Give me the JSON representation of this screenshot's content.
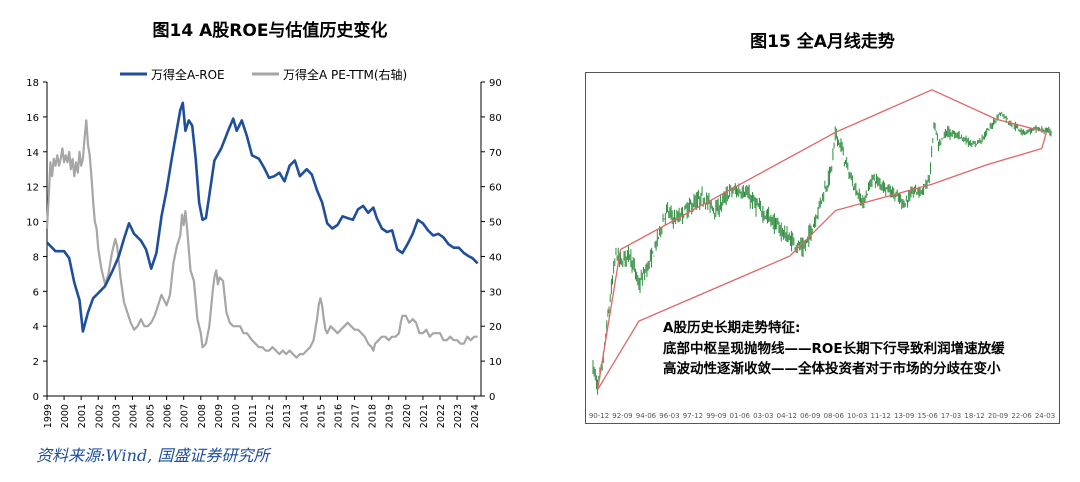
{
  "figure14": {
    "title": "图14 A股ROE与估值历史变化",
    "chart_data": {
      "type": "line",
      "title": "图14 A股ROE与估值历史变化",
      "x_ticks": [
        "1999",
        "2000",
        "2001",
        "2002",
        "2003",
        "2004",
        "2005",
        "2006",
        "2007",
        "2008",
        "2009",
        "2010",
        "2011",
        "2012",
        "2013",
        "2014",
        "2015",
        "2016",
        "2017",
        "2018",
        "2019",
        "2020",
        "2021",
        "2022",
        "2023",
        "2024"
      ],
      "ylim_left": [
        0,
        18
      ],
      "yticks_left": [
        "0",
        "2",
        "4",
        "6",
        "8",
        "10",
        "12",
        "14",
        "16",
        "18"
      ],
      "ylim_right": [
        0,
        90
      ],
      "yticks_right": [
        "0",
        "10",
        "20",
        "30",
        "40",
        "50",
        "60",
        "70",
        "80",
        "90"
      ],
      "legend_position": "top",
      "series": [
        {
          "name": "万得全A-ROE",
          "axis": "left",
          "color": "#1f4e9c",
          "points": [
            [
              1999.0,
              8.8
            ],
            [
              1999.5,
              8.3
            ],
            [
              2000.0,
              8.3
            ],
            [
              2000.3,
              7.9
            ],
            [
              2000.6,
              6.5
            ],
            [
              2000.9,
              5.5
            ],
            [
              2001.1,
              3.7
            ],
            [
              2001.4,
              4.8
            ],
            [
              2001.7,
              5.6
            ],
            [
              2002.0,
              5.9
            ],
            [
              2002.4,
              6.3
            ],
            [
              2002.8,
              7.1
            ],
            [
              2003.2,
              8.0
            ],
            [
              2003.5,
              9.0
            ],
            [
              2003.8,
              9.9
            ],
            [
              2004.1,
              9.3
            ],
            [
              2004.5,
              8.9
            ],
            [
              2004.8,
              8.4
            ],
            [
              2005.1,
              7.3
            ],
            [
              2005.4,
              8.2
            ],
            [
              2005.7,
              10.3
            ],
            [
              2006.0,
              11.8
            ],
            [
              2006.3,
              13.6
            ],
            [
              2006.6,
              15.3
            ],
            [
              2006.8,
              16.4
            ],
            [
              2006.95,
              16.8
            ],
            [
              2007.1,
              15.2
            ],
            [
              2007.3,
              15.8
            ],
            [
              2007.5,
              15.5
            ],
            [
              2007.7,
              13.6
            ],
            [
              2007.9,
              11.1
            ],
            [
              2008.1,
              10.1
            ],
            [
              2008.3,
              10.2
            ],
            [
              2008.5,
              11.5
            ],
            [
              2008.8,
              13.5
            ],
            [
              2009.2,
              14.2
            ],
            [
              2009.6,
              15.2
            ],
            [
              2009.9,
              15.9
            ],
            [
              2010.1,
              15.2
            ],
            [
              2010.4,
              15.8
            ],
            [
              2010.7,
              14.9
            ],
            [
              2011.0,
              13.8
            ],
            [
              2011.4,
              13.6
            ],
            [
              2011.7,
              13.1
            ],
            [
              2012.0,
              12.5
            ],
            [
              2012.3,
              12.6
            ],
            [
              2012.6,
              12.8
            ],
            [
              2012.9,
              12.3
            ],
            [
              2013.2,
              13.2
            ],
            [
              2013.5,
              13.5
            ],
            [
              2013.8,
              12.6
            ],
            [
              2014.2,
              13.0
            ],
            [
              2014.5,
              12.7
            ],
            [
              2014.8,
              11.8
            ],
            [
              2015.1,
              11.1
            ],
            [
              2015.4,
              9.9
            ],
            [
              2015.7,
              9.6
            ],
            [
              2016.0,
              9.8
            ],
            [
              2016.3,
              10.3
            ],
            [
              2016.6,
              10.2
            ],
            [
              2016.9,
              10.1
            ],
            [
              2017.2,
              10.7
            ],
            [
              2017.5,
              10.9
            ],
            [
              2017.8,
              10.5
            ],
            [
              2018.1,
              10.8
            ],
            [
              2018.3,
              10.2
            ],
            [
              2018.6,
              9.6
            ],
            [
              2018.9,
              9.4
            ],
            [
              2019.2,
              9.5
            ],
            [
              2019.5,
              8.4
            ],
            [
              2019.8,
              8.2
            ],
            [
              2020.1,
              8.7
            ],
            [
              2020.4,
              9.3
            ],
            [
              2020.7,
              10.1
            ],
            [
              2021.0,
              9.9
            ],
            [
              2021.3,
              9.5
            ],
            [
              2021.6,
              9.2
            ],
            [
              2021.9,
              9.3
            ],
            [
              2022.2,
              9.1
            ],
            [
              2022.5,
              8.7
            ],
            [
              2022.8,
              8.5
            ],
            [
              2023.1,
              8.5
            ],
            [
              2023.4,
              8.2
            ],
            [
              2023.7,
              8.0
            ],
            [
              2023.9,
              7.9
            ],
            [
              2024.2,
              7.6
            ]
          ]
        },
        {
          "name": "万得全A PE-TTM(右轴)",
          "axis": "right",
          "color": "#a6a6a6",
          "points": [
            [
              1999.0,
              48
            ],
            [
              1999.1,
              57
            ],
            [
              1999.2,
              67
            ],
            [
              1999.3,
              63
            ],
            [
              1999.4,
              68
            ],
            [
              1999.5,
              66
            ],
            [
              1999.6,
              69
            ],
            [
              1999.7,
              66
            ],
            [
              1999.8,
              68
            ],
            [
              1999.9,
              71
            ],
            [
              2000.0,
              67
            ],
            [
              2000.1,
              69
            ],
            [
              2000.2,
              67
            ],
            [
              2000.3,
              70
            ],
            [
              2000.4,
              65
            ],
            [
              2000.5,
              68
            ],
            [
              2000.6,
              63
            ],
            [
              2000.7,
              67
            ],
            [
              2000.8,
              64
            ],
            [
              2000.9,
              70
            ],
            [
              2001.0,
              66
            ],
            [
              2001.1,
              68
            ],
            [
              2001.2,
              74
            ],
            [
              2001.3,
              79
            ],
            [
              2001.4,
              72
            ],
            [
              2001.5,
              69
            ],
            [
              2001.6,
              63
            ],
            [
              2001.7,
              56
            ],
            [
              2001.8,
              50
            ],
            [
              2001.9,
              48
            ],
            [
              2002.0,
              42
            ],
            [
              2002.2,
              36
            ],
            [
              2002.4,
              32
            ],
            [
              2002.6,
              35
            ],
            [
              2002.8,
              41
            ],
            [
              2003.0,
              45
            ],
            [
              2003.1,
              43
            ],
            [
              2003.3,
              34
            ],
            [
              2003.5,
              27
            ],
            [
              2003.7,
              24
            ],
            [
              2003.9,
              21
            ],
            [
              2004.1,
              19
            ],
            [
              2004.3,
              20
            ],
            [
              2004.5,
              22
            ],
            [
              2004.7,
              20
            ],
            [
              2004.9,
              20
            ],
            [
              2005.1,
              21
            ],
            [
              2005.3,
              23
            ],
            [
              2005.5,
              26
            ],
            [
              2005.7,
              29
            ],
            [
              2005.8,
              28
            ],
            [
              2006.0,
              26
            ],
            [
              2006.2,
              29
            ],
            [
              2006.4,
              38
            ],
            [
              2006.6,
              43
            ],
            [
              2006.8,
              46
            ],
            [
              2006.9,
              52
            ],
            [
              2007.0,
              49
            ],
            [
              2007.1,
              53
            ],
            [
              2007.2,
              48
            ],
            [
              2007.4,
              36
            ],
            [
              2007.6,
              33
            ],
            [
              2007.8,
              22
            ],
            [
              2008.0,
              18
            ],
            [
              2008.1,
              14
            ],
            [
              2008.3,
              15
            ],
            [
              2008.5,
              20
            ],
            [
              2008.7,
              30
            ],
            [
              2008.8,
              34
            ],
            [
              2008.9,
              36
            ],
            [
              2009.0,
              32
            ],
            [
              2009.1,
              34
            ],
            [
              2009.3,
              33
            ],
            [
              2009.5,
              24
            ],
            [
              2009.7,
              21
            ],
            [
              2009.9,
              20
            ],
            [
              2010.1,
              20
            ],
            [
              2010.3,
              20
            ],
            [
              2010.5,
              18
            ],
            [
              2010.7,
              18
            ],
            [
              2011.0,
              16
            ],
            [
              2011.2,
              15
            ],
            [
              2011.4,
              14
            ],
            [
              2011.6,
              14
            ],
            [
              2011.8,
              13
            ],
            [
              2012.0,
              13
            ],
            [
              2012.2,
              14
            ],
            [
              2012.4,
              13
            ],
            [
              2012.6,
              12
            ],
            [
              2012.8,
              13
            ],
            [
              2013.0,
              12
            ],
            [
              2013.2,
              13
            ],
            [
              2013.4,
              12
            ],
            [
              2013.6,
              11
            ],
            [
              2013.8,
              12
            ],
            [
              2014.0,
              12
            ],
            [
              2014.2,
              13
            ],
            [
              2014.4,
              14
            ],
            [
              2014.6,
              16
            ],
            [
              2014.8,
              22
            ],
            [
              2014.9,
              26
            ],
            [
              2015.0,
              28
            ],
            [
              2015.1,
              26
            ],
            [
              2015.2,
              22
            ],
            [
              2015.3,
              19
            ],
            [
              2015.4,
              18
            ],
            [
              2015.6,
              20
            ],
            [
              2015.8,
              19
            ],
            [
              2016.0,
              18
            ],
            [
              2016.2,
              19
            ],
            [
              2016.4,
              20
            ],
            [
              2016.6,
              21
            ],
            [
              2016.8,
              20
            ],
            [
              2017.0,
              19
            ],
            [
              2017.2,
              19
            ],
            [
              2017.4,
              18
            ],
            [
              2017.6,
              17
            ],
            [
              2017.8,
              15
            ],
            [
              2018.0,
              14
            ],
            [
              2018.1,
              13
            ],
            [
              2018.2,
              15
            ],
            [
              2018.4,
              16
            ],
            [
              2018.6,
              17
            ],
            [
              2018.8,
              17
            ],
            [
              2019.0,
              16
            ],
            [
              2019.2,
              17
            ],
            [
              2019.4,
              17
            ],
            [
              2019.6,
              18
            ],
            [
              2019.7,
              21
            ],
            [
              2019.8,
              23
            ],
            [
              2020.0,
              23
            ],
            [
              2020.2,
              21
            ],
            [
              2020.4,
              22
            ],
            [
              2020.6,
              21
            ],
            [
              2020.8,
              18
            ],
            [
              2021.0,
              18
            ],
            [
              2021.2,
              19
            ],
            [
              2021.4,
              17
            ],
            [
              2021.6,
              18
            ],
            [
              2021.8,
              18
            ],
            [
              2022.0,
              18
            ],
            [
              2022.2,
              16
            ],
            [
              2022.4,
              16
            ],
            [
              2022.6,
              17
            ],
            [
              2022.8,
              16
            ],
            [
              2023.0,
              16
            ],
            [
              2023.2,
              15
            ],
            [
              2023.4,
              15
            ],
            [
              2023.6,
              17
            ],
            [
              2023.8,
              16
            ],
            [
              2024.0,
              17
            ],
            [
              2024.2,
              17
            ]
          ]
        }
      ]
    }
  },
  "figure15": {
    "title": "图15 全A月线走势",
    "annotation": {
      "heading": "A股历史长期走势特征:",
      "line1": "底部中枢呈现抛物线——ROE长期下行导致利润增速放缓",
      "line2": "高波动性逐渐收敛——全体投资者对于市场的分歧在变小"
    },
    "chart_data": {
      "type": "line",
      "title": "图15 全A月线走势",
      "x_ticks": [
        "90-12",
        "92-09",
        "94-06",
        "96-03",
        "97-12",
        "99-09",
        "01-06",
        "03-03",
        "04-12",
        "06-09",
        "08-06",
        "10-03",
        "11-12",
        "13-09",
        "15-06",
        "17-03",
        "18-12",
        "20-09",
        "22-06",
        "24-03"
      ],
      "price_color": "#2e8b3e",
      "channel_color": "#e06666"
    }
  },
  "source": "资料来源:Wind, 国盛证券研究所"
}
